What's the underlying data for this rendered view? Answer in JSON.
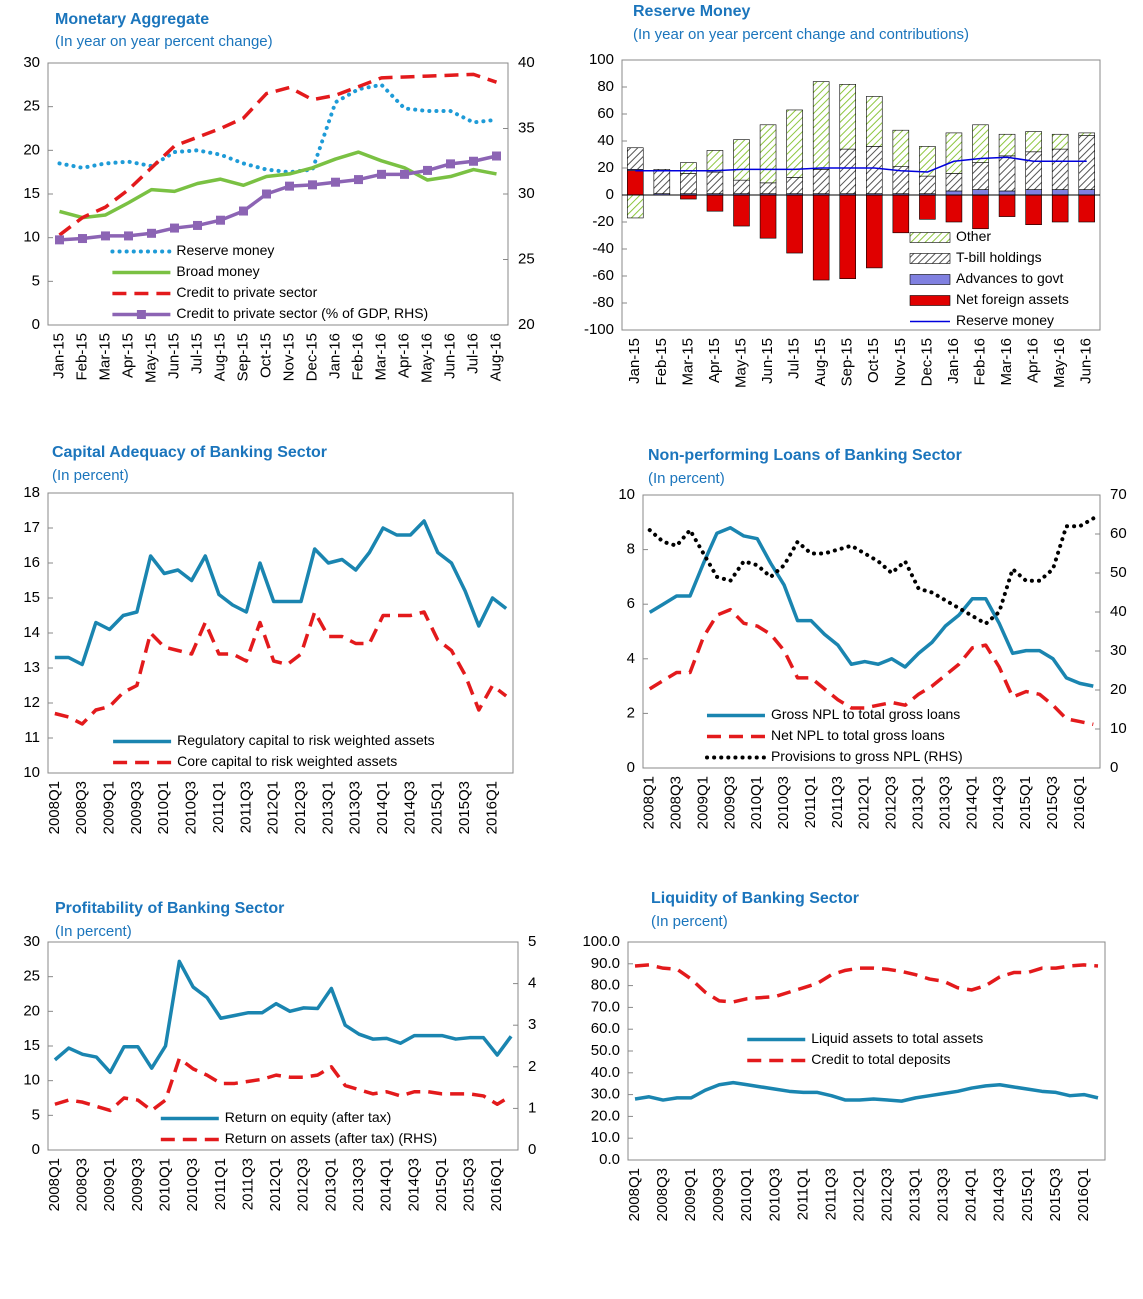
{
  "chart_data": [
    {
      "type": "line",
      "title": "Monetary Aggregate",
      "subtitle": "(In year on year percent change)",
      "categories": [
        "Jan-15",
        "Feb-15",
        "Mar-15",
        "Apr-15",
        "May-15",
        "Jun-15",
        "Jul-15",
        "Aug-15",
        "Sep-15",
        "Oct-15",
        "Nov-15",
        "Dec-15",
        "Jan-16",
        "Feb-16",
        "Mar-16",
        "Apr-16",
        "May-16",
        "Jun-16",
        "Jul-16",
        "Aug-16"
      ],
      "ylim": [
        0,
        30
      ],
      "yticks": [
        0,
        5,
        10,
        15,
        20,
        25,
        30
      ],
      "y2lim": [
        20,
        40
      ],
      "y2ticks": [
        20,
        25,
        30,
        35,
        40
      ],
      "legend": "lower left",
      "series": [
        {
          "name": "Reserve money",
          "color": "#1e9bd7",
          "line_style": "dotted",
          "values": [
            18.5,
            18,
            18.5,
            18.7,
            18.2,
            19.8,
            20,
            19.5,
            18.5,
            17.8,
            17.5,
            17.8,
            25.5,
            27,
            27.5,
            24.8,
            24.5,
            24.5,
            23.2,
            23.5
          ]
        },
        {
          "name": "Broad money",
          "color": "#7ac143",
          "line_style": "solid",
          "values": [
            13,
            12.3,
            12.6,
            14,
            15.5,
            15.3,
            16.2,
            16.7,
            16,
            17,
            17.3,
            18,
            19,
            19.8,
            18.8,
            18,
            16.6,
            17,
            17.8,
            17.3
          ]
        },
        {
          "name": "Credit to private sector",
          "color": "#e31a1c",
          "line_style": "dashed",
          "values": [
            10.3,
            12.3,
            13.5,
            15.5,
            18,
            20.5,
            21.5,
            22.5,
            23.7,
            26.5,
            27.2,
            25.8,
            26.3,
            27.3,
            28.3,
            28.4,
            28.5,
            28.6,
            28.7,
            27.8
          ]
        },
        {
          "name": "Credit to private sector (% of GDP, RHS)",
          "color": "#8c64b4",
          "line_style": "solid",
          "marker": "square",
          "axis": "y2",
          "values": [
            26.5,
            26.6,
            26.8,
            26.8,
            27,
            27.4,
            27.6,
            28,
            28.7,
            30,
            30.6,
            30.7,
            30.9,
            31.1,
            31.5,
            31.5,
            31.8,
            32.3,
            32.5,
            32.9
          ]
        }
      ]
    },
    {
      "type": "bar",
      "title": "Reserve Money",
      "subtitle": "(In year on year percent change and contributions)",
      "categories": [
        "Jan-15",
        "Feb-15",
        "Mar-15",
        "Apr-15",
        "May-15",
        "Jun-15",
        "Jul-15",
        "Aug-15",
        "Sep-15",
        "Oct-15",
        "Nov-15",
        "Dec-15",
        "Jan-16",
        "Feb-16",
        "Mar-16",
        "Apr-16",
        "May-16",
        "Jun-16"
      ],
      "ylim": [
        -100,
        100
      ],
      "yticks": [
        -100,
        -80,
        -60,
        -40,
        -20,
        0,
        20,
        40,
        60,
        80,
        100
      ],
      "legend": "lower right",
      "series": [
        {
          "name": "Other",
          "color": "#8dc63f",
          "hatch": true,
          "values": [
            -17,
            0,
            8,
            16,
            30,
            43,
            50,
            65,
            48,
            37,
            27,
            22,
            30,
            28,
            16,
            15,
            11,
            2
          ]
        },
        {
          "name": "T-bill holdings",
          "color": "#555555",
          "hatch": true,
          "values": [
            16,
            18,
            15,
            16,
            10,
            8,
            12,
            18,
            33,
            35,
            20,
            13,
            13,
            20,
            26,
            28,
            30,
            40
          ]
        },
        {
          "name": "Advances to govt",
          "color": "#8080e0",
          "values": [
            1,
            1,
            1,
            1,
            1,
            1,
            1,
            1,
            1,
            1,
            1,
            1,
            3,
            4,
            3,
            4,
            4,
            4
          ]
        },
        {
          "name": "Net foreign assets",
          "color": "#e00000",
          "values": [
            18,
            0,
            -3,
            -12,
            -23,
            -32,
            -43,
            -63,
            -62,
            -54,
            -28,
            -18,
            -20,
            -25,
            -16,
            -22,
            -20,
            -20
          ]
        },
        {
          "name": "Reserve money",
          "color": "#0000dd",
          "type": "line",
          "values": [
            18,
            18,
            18,
            18,
            19,
            19,
            19,
            20,
            20,
            20,
            18,
            17,
            25,
            27,
            28,
            25,
            25,
            25
          ]
        }
      ]
    },
    {
      "type": "line",
      "title": "Capital Adequacy of Banking Sector",
      "subtitle": "(In percent)",
      "categories": [
        "2008Q1",
        null,
        "2008Q3",
        null,
        "2009Q1",
        null,
        "2009Q3",
        null,
        "2010Q1",
        null,
        "2010Q3",
        null,
        "2011Q1",
        null,
        "2011Q3",
        null,
        "2012Q1",
        null,
        "2012Q3",
        null,
        "2013Q1",
        null,
        "2013Q3",
        null,
        "2014Q1",
        null,
        "2014Q3",
        null,
        "2015Q1",
        null,
        "2015Q3",
        null,
        "2016Q1",
        null
      ],
      "ylim": [
        10,
        18
      ],
      "yticks": [
        10,
        11,
        12,
        13,
        14,
        15,
        16,
        17,
        18
      ],
      "legend": "lower left",
      "series": [
        {
          "name": "Regulatory capital to risk weighted assets",
          "color": "#1a85b0",
          "line_style": "solid",
          "values": [
            13.3,
            13.3,
            13.1,
            14.3,
            14.1,
            14.5,
            14.6,
            16.2,
            15.7,
            15.8,
            15.5,
            16.2,
            15.1,
            14.8,
            14.6,
            16,
            14.9,
            14.9,
            14.9,
            16.4,
            16,
            16.1,
            15.8,
            16.3,
            17,
            16.8,
            16.8,
            17.2,
            16.3,
            16,
            15.2,
            14.2,
            15,
            14.7
          ]
        },
        {
          "name": "Core capital to risk weighted assets",
          "color": "#e31a1c",
          "line_style": "dashed",
          "values": [
            11.7,
            11.6,
            11.4,
            11.8,
            11.9,
            12.3,
            12.5,
            14,
            13.6,
            13.5,
            13.4,
            14.3,
            13.4,
            13.4,
            13.2,
            14.3,
            13.2,
            13.1,
            13.4,
            14.6,
            13.9,
            13.9,
            13.7,
            13.7,
            14.5,
            14.5,
            14.5,
            14.6,
            13.8,
            13.5,
            12.8,
            11.8,
            12.5,
            12.2
          ]
        }
      ]
    },
    {
      "type": "line",
      "title": "Non-performing Loans of Banking Sector",
      "subtitle": "(In percent)",
      "categories": [
        "2008Q1",
        null,
        "2008Q3",
        null,
        "2009Q1",
        null,
        "2009Q3",
        null,
        "2010Q1",
        null,
        "2010Q3",
        null,
        "2011Q1",
        null,
        "2011Q3",
        null,
        "2012Q1",
        null,
        "2012Q3",
        null,
        "2013Q1",
        null,
        "2013Q3",
        null,
        "2014Q1",
        null,
        "2014Q3",
        null,
        "2015Q1",
        null,
        "2015Q3",
        null,
        "2016Q1",
        null
      ],
      "ylim": [
        0,
        10
      ],
      "yticks": [
        0,
        2,
        4,
        6,
        8,
        10
      ],
      "y2lim": [
        0,
        70
      ],
      "y2ticks": [
        0,
        10,
        20,
        30,
        40,
        50,
        60,
        70
      ],
      "legend": "lower left",
      "series": [
        {
          "name": "Gross NPL to total gross loans",
          "color": "#1a85b0",
          "line_style": "solid",
          "values": [
            5.7,
            6,
            6.3,
            6.3,
            7.5,
            8.6,
            8.8,
            8.5,
            8.4,
            7.5,
            6.7,
            5.4,
            5.4,
            4.9,
            4.5,
            3.8,
            3.9,
            3.8,
            4,
            3.7,
            4.2,
            4.6,
            5.2,
            5.6,
            6.2,
            6.2,
            5.3,
            4.2,
            4.3,
            4.3,
            4,
            3.3,
            3.1,
            3
          ]
        },
        {
          "name": "Net NPL to total gross loans",
          "color": "#e31a1c",
          "line_style": "dashed",
          "values": [
            2.9,
            3.2,
            3.5,
            3.5,
            4.8,
            5.6,
            5.8,
            5.3,
            5.2,
            4.9,
            4.3,
            3.3,
            3.3,
            2.9,
            2.5,
            2.2,
            2.2,
            2.3,
            2.4,
            2.3,
            2.7,
            3,
            3.4,
            3.8,
            4.4,
            4.5,
            3.7,
            2.6,
            2.8,
            2.7,
            2.3,
            1.8,
            1.7,
            1.6
          ]
        },
        {
          "name": "Provisions to gross NPL (RHS)",
          "color": "#000000",
          "line_style": "dotted",
          "axis": "y2",
          "values": [
            61,
            58,
            57,
            61,
            55,
            49,
            48,
            53,
            52,
            49,
            52,
            58,
            55,
            55,
            56,
            57,
            55,
            53,
            50,
            53,
            46,
            45,
            43,
            41,
            39,
            37,
            40,
            51,
            48,
            48,
            51,
            62,
            62,
            64
          ]
        }
      ]
    },
    {
      "type": "line",
      "title": "Profitability of Banking Sector",
      "subtitle": "(In percent)",
      "categories": [
        "2008Q1",
        null,
        "2008Q3",
        null,
        "2009Q1",
        null,
        "2009Q3",
        null,
        "2010Q1",
        null,
        "2010Q3",
        null,
        "2011Q1",
        null,
        "2011Q3",
        null,
        "2012Q1",
        null,
        "2012Q3",
        null,
        "2013Q1",
        null,
        "2013Q3",
        null,
        "2014Q1",
        null,
        "2014Q3",
        null,
        "2015Q1",
        null,
        "2015Q3",
        null,
        "2016Q1",
        null
      ],
      "ylim": [
        0,
        30
      ],
      "yticks": [
        0,
        5,
        10,
        15,
        20,
        25,
        30
      ],
      "y2lim": [
        0,
        5
      ],
      "y2ticks": [
        0,
        1,
        2,
        3,
        4,
        5
      ],
      "legend": "lower center",
      "series": [
        {
          "name": "Return on equity (after tax)",
          "color": "#1a85b0",
          "line_style": "solid",
          "values": [
            13,
            14.7,
            13.8,
            13.4,
            11.2,
            14.9,
            14.9,
            11.8,
            15,
            27.2,
            23.5,
            22,
            19,
            19.4,
            19.8,
            19.8,
            21.1,
            20,
            20.5,
            20.4,
            23.3,
            18,
            16.7,
            16,
            16.1,
            15.4,
            16.5,
            16.5,
            16.5,
            16,
            16.2,
            16.2,
            13.7,
            16.4
          ]
        },
        {
          "name": "Return on assets (after tax) (RHS)",
          "color": "#e31a1c",
          "line_style": "dashed",
          "axis": "y2",
          "values": [
            1.1,
            1.2,
            1.15,
            1.05,
            0.95,
            1.25,
            1.2,
            0.95,
            1.2,
            2.2,
            1.95,
            1.8,
            1.6,
            1.6,
            1.65,
            1.7,
            1.8,
            1.75,
            1.75,
            1.8,
            2,
            1.55,
            1.45,
            1.35,
            1.4,
            1.3,
            1.4,
            1.4,
            1.35,
            1.35,
            1.35,
            1.3,
            1.1,
            1.3
          ]
        }
      ]
    },
    {
      "type": "line",
      "title": "Liquidity of Banking Sector",
      "subtitle": "(In percent)",
      "categories": [
        "2008Q1",
        null,
        "2008Q3",
        null,
        "2009Q1",
        null,
        "2009Q3",
        null,
        "2010Q1",
        null,
        "2010Q3",
        null,
        "2011Q1",
        null,
        "2011Q3",
        null,
        "2012Q1",
        null,
        "2012Q3",
        null,
        "2013Q1",
        null,
        "2013Q3",
        null,
        "2014Q1",
        null,
        "2014Q3",
        null,
        "2015Q1",
        null,
        "2015Q3",
        null,
        "2016Q1",
        null
      ],
      "ylim": [
        0,
        100
      ],
      "yticks": [
        {
          "value": 0,
          "label": "0.0"
        },
        {
          "value": 10,
          "label": "10.0"
        },
        {
          "value": 20,
          "label": "20.0"
        },
        {
          "value": 30,
          "label": "30.0"
        },
        {
          "value": 40,
          "label": "40.0"
        },
        {
          "value": 50,
          "label": "50.0"
        },
        {
          "value": 60,
          "label": "60.0"
        },
        {
          "value": 70,
          "label": "70.0"
        },
        {
          "value": 80,
          "label": "80.0"
        },
        {
          "value": 90,
          "label": "90.0"
        },
        {
          "value": 100,
          "label": "100.0"
        }
      ],
      "legend": "center",
      "series": [
        {
          "name": "Liquid assets to total assets",
          "color": "#1a85b0",
          "line_style": "solid",
          "values": [
            28,
            29,
            27.5,
            28.5,
            28.5,
            32,
            34.5,
            35.5,
            34.5,
            33.5,
            32.5,
            31.5,
            31,
            31,
            29.5,
            27.5,
            27.5,
            28,
            27.5,
            27,
            28.5,
            29.5,
            30.5,
            31.5,
            33,
            34,
            34.5,
            33.5,
            32.5,
            31.5,
            31,
            29.5,
            30,
            28.5
          ]
        },
        {
          "name": "Credit to total deposits",
          "color": "#e31a1c",
          "line_style": "dashed",
          "values": [
            89,
            89.5,
            88,
            87.5,
            83,
            77,
            73,
            72.5,
            74,
            74.5,
            75,
            77,
            79,
            81,
            85,
            87,
            88,
            88,
            87.5,
            86.5,
            85,
            83,
            82,
            79,
            78,
            80,
            84,
            86,
            86,
            88,
            88,
            89,
            89.5,
            89
          ]
        }
      ]
    }
  ]
}
